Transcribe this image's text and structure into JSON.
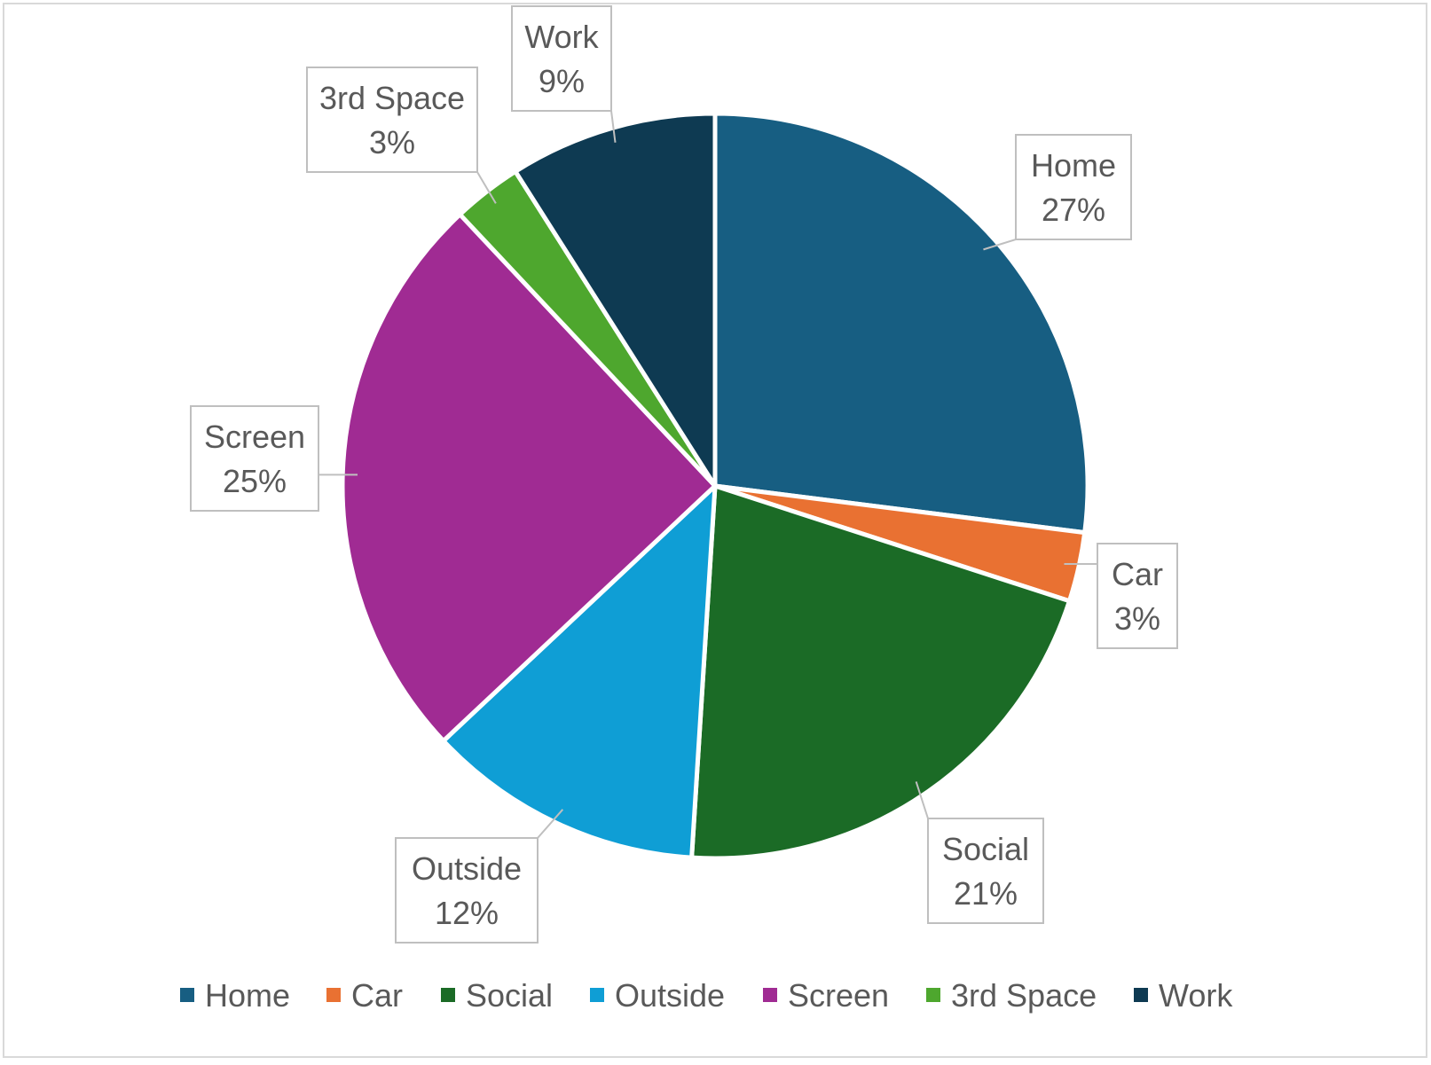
{
  "chart_data": {
    "type": "pie",
    "title": "",
    "categories": [
      "Home",
      "Car",
      "Social",
      "Outside",
      "Screen",
      "3rd Space",
      "Work"
    ],
    "values": [
      27,
      3,
      21,
      12,
      25,
      3,
      9
    ],
    "value_labels": [
      "27%",
      "3%",
      "21%",
      "12%",
      "25%",
      "3%",
      "9%"
    ],
    "colors": [
      "#175e82",
      "#e97132",
      "#1b6b26",
      "#0f9ed5",
      "#a02b93",
      "#4ea72e",
      "#0e3a52"
    ],
    "legend_position": "bottom",
    "data_label_style": "callout"
  }
}
